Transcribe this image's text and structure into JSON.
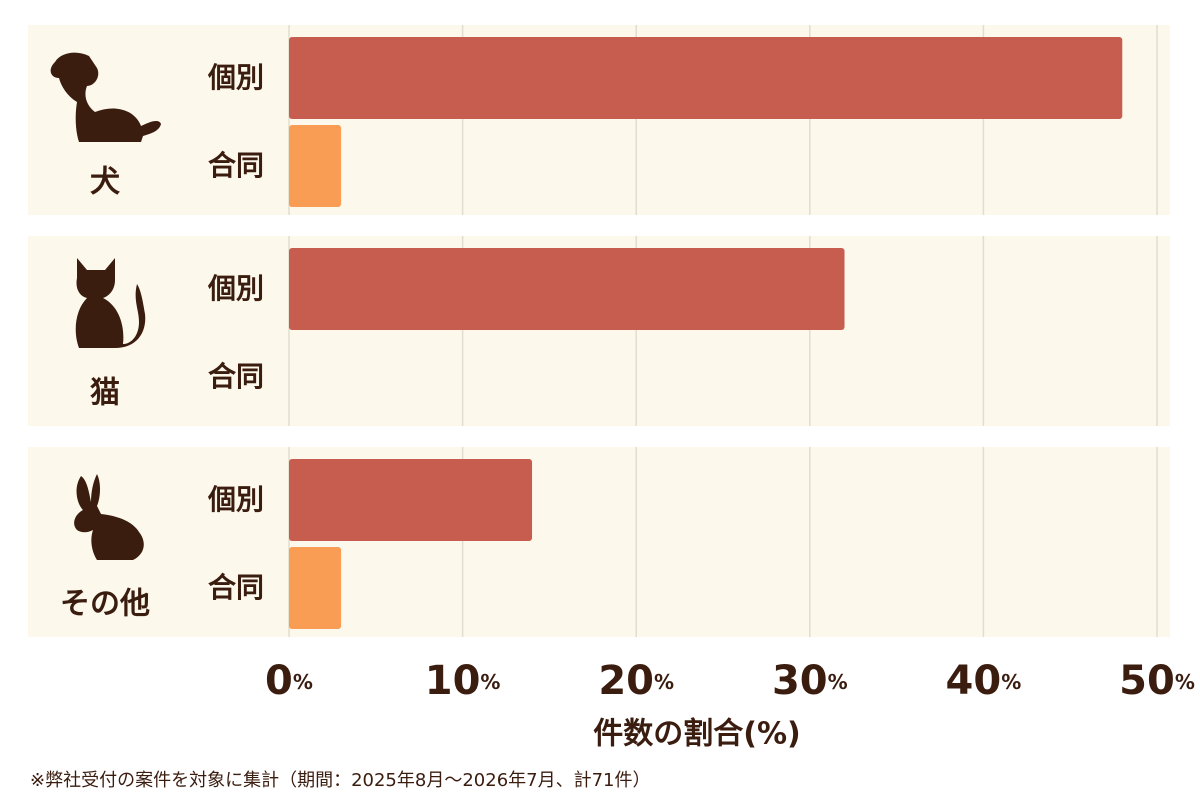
{
  "chart_data": {
    "type": "bar",
    "orientation": "horizontal",
    "categories": [
      "犬",
      "猫",
      "その他"
    ],
    "series": [
      {
        "name": "個別",
        "color": "#c65d4e",
        "values": [
          48,
          32,
          14
        ]
      },
      {
        "name": "合同",
        "color": "#f99d55",
        "values": [
          3,
          0,
          3
        ]
      }
    ],
    "xlim": [
      0,
      50
    ],
    "xticks": [
      {
        "value": 0,
        "label": "0%"
      },
      {
        "value": 10,
        "label": "10%"
      },
      {
        "value": 20,
        "label": "20%"
      },
      {
        "value": 30,
        "label": "30%"
      },
      {
        "value": 40,
        "label": "40%"
      },
      {
        "value": 50,
        "label": "50%"
      }
    ],
    "xlabel": "件数の割合(%)",
    "note": "※弊社受付の案件を対象に集計（期間：2025年8月～2026年7月、計71件）",
    "grid": true
  }
}
